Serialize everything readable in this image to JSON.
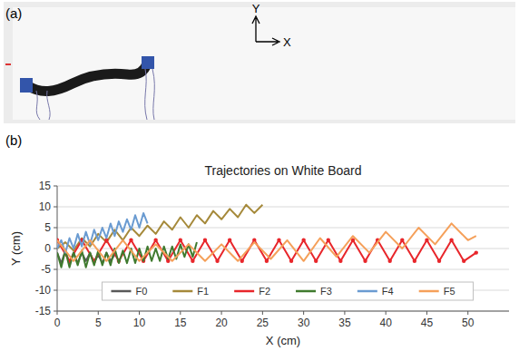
{
  "panel_a": {
    "label": "(a)",
    "axis_labels": {
      "x": "X",
      "y": "Y"
    }
  },
  "panel_b": {
    "label": "(b)"
  },
  "chart_data": {
    "type": "line",
    "title": "Trajectories on White Board",
    "x_label": "X (cm)",
    "y_label": "Y (cm)",
    "xlim": [
      0,
      55
    ],
    "xticks": [
      0,
      5,
      10,
      15,
      20,
      25,
      30,
      35,
      40,
      45,
      50
    ],
    "ylim": [
      -15,
      15
    ],
    "yticks": [
      -15,
      -10,
      -5,
      0,
      5,
      10,
      15
    ],
    "grid": "y",
    "legend": "bottom",
    "series": [
      {
        "name": "F0",
        "color": "#595959",
        "line_style": "solid",
        "x": [
          0,
          0.5,
          1,
          1.5,
          2,
          2.5,
          3,
          3.5,
          4,
          4.5,
          5,
          5.5,
          6,
          6.5,
          7
        ],
        "values": [
          -1,
          -3.5,
          -0.5,
          -3.5,
          -1,
          -3.5,
          -1,
          -3,
          -1,
          -3.5,
          -1.5,
          -3.5,
          -1,
          -3,
          -1.5
        ]
      },
      {
        "name": "F1",
        "color": "#a5893a",
        "line_style": "solid",
        "x": [
          0,
          1,
          2,
          3,
          4,
          5,
          6,
          7,
          8,
          9,
          10,
          11,
          12,
          13,
          14,
          15,
          16,
          17,
          18,
          19,
          20,
          21,
          22,
          23,
          24,
          25
        ],
        "values": [
          0,
          1.5,
          -0.5,
          2.5,
          0.5,
          3.5,
          1.5,
          4.5,
          2,
          5,
          3,
          5.5,
          3.5,
          6.5,
          4.5,
          7.5,
          5,
          8,
          6,
          9,
          7,
          9.5,
          7.5,
          10.5,
          8.5,
          10.5
        ]
      },
      {
        "name": "F2",
        "color": "#e8262b",
        "line_style": "solid",
        "marker": "circle",
        "x": [
          0,
          1.5,
          3,
          4.5,
          6,
          7.5,
          9,
          10.5,
          12,
          13.5,
          15,
          16.5,
          18,
          19.5,
          21,
          22.5,
          24,
          25.5,
          27,
          28.5,
          30,
          31.5,
          33,
          34.5,
          36,
          37.5,
          39,
          40.5,
          42,
          43.5,
          45,
          46.5,
          48,
          49.5,
          51
        ],
        "values": [
          2,
          -3,
          2,
          -3,
          2,
          -3,
          2,
          -3,
          2,
          -3,
          2,
          -3,
          2,
          -3,
          2,
          -3,
          2,
          -3,
          2,
          -3,
          2,
          -3,
          2,
          -3,
          2,
          -3,
          2,
          -3,
          2,
          -3,
          2,
          -3,
          2,
          -3,
          -1
        ]
      },
      {
        "name": "F3",
        "color": "#3f7a2e",
        "line_style": "solid",
        "x": [
          0,
          0.5,
          1,
          1.5,
          2,
          2.5,
          3,
          3.5,
          4,
          4.5,
          5,
          5.5,
          6,
          6.5,
          7,
          7.5,
          8,
          8.5,
          9,
          9.5,
          10,
          10.5,
          11,
          11.5,
          12,
          12.5,
          13,
          13.5,
          14,
          14.5,
          15,
          15.5,
          16,
          16.5,
          17
        ],
        "values": [
          -1,
          -4.5,
          -0.5,
          -4.5,
          -1,
          -4,
          -0.5,
          -4.5,
          -1,
          -4,
          -0.5,
          -4,
          -1,
          -4,
          0,
          -3.5,
          -0.5,
          -3.5,
          0,
          -3.5,
          0,
          -3,
          0.5,
          -3,
          0,
          -3,
          0.5,
          -2.5,
          0.5,
          -2.5,
          1,
          -2,
          1,
          -2,
          1.5
        ]
      },
      {
        "name": "F4",
        "color": "#6a9bd1",
        "line_style": "solid",
        "x": [
          0,
          0.5,
          1,
          1.5,
          2,
          2.5,
          3,
          3.5,
          4,
          4.5,
          5,
          5.5,
          6,
          6.5,
          7,
          7.5,
          8,
          8.5,
          9,
          9.5,
          10,
          10.5,
          11
        ],
        "values": [
          0,
          2,
          -1,
          2.5,
          0,
          3.5,
          0.5,
          4,
          1,
          4.5,
          2,
          5,
          2.5,
          6,
          3,
          6.5,
          4,
          7,
          4.5,
          8,
          5,
          8.5,
          6
        ]
      },
      {
        "name": "F5",
        "color": "#f5a05a",
        "line_style": "solid",
        "x": [
          0,
          2,
          4,
          6,
          8,
          10,
          12,
          14,
          16,
          18,
          20,
          22,
          24,
          26,
          28,
          30,
          32,
          34,
          36,
          38,
          40,
          42,
          44,
          46,
          48,
          50,
          51
        ],
        "values": [
          2,
          -3,
          2,
          -3,
          2,
          -3,
          1,
          -3,
          1,
          -3,
          1,
          -3,
          1.5,
          -2.5,
          2,
          -3,
          2.5,
          -2,
          3,
          -1,
          4,
          0,
          5,
          1,
          6,
          2,
          3
        ]
      }
    ]
  }
}
